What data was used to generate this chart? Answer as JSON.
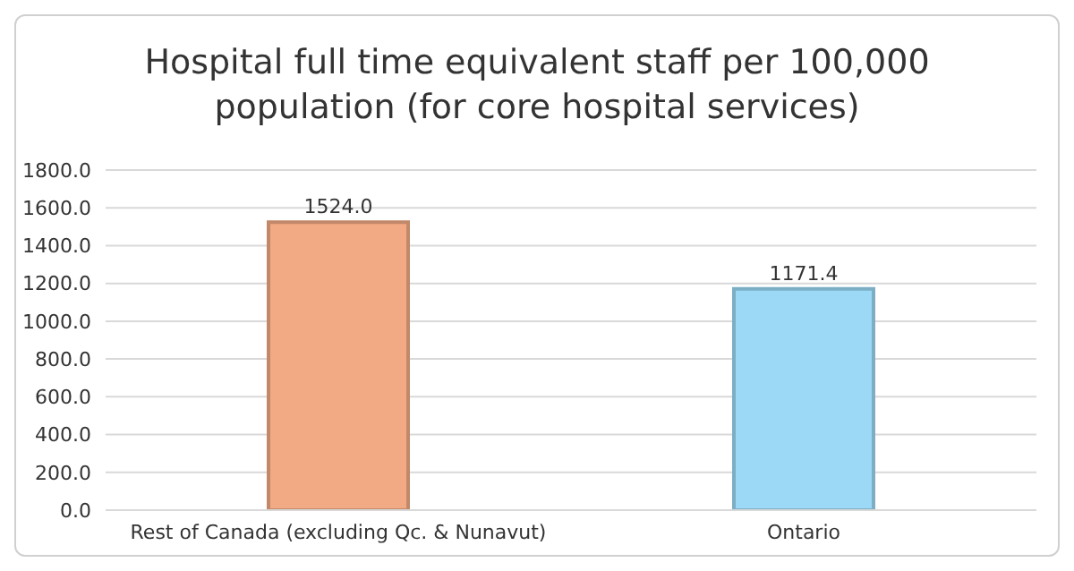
{
  "chart_data": {
    "type": "bar",
    "title": "Hospital full time equivalent staff per 100,000 population (for core hospital services)",
    "categories": [
      "Rest of Canada (excluding Qc. & Nunavut)",
      "Ontario"
    ],
    "values": [
      1524.0,
      1171.4
    ],
    "colors": [
      "#f2aa84",
      "#9bd9f7"
    ],
    "value_labels": [
      "1524.0",
      "1171.4"
    ],
    "ylim": [
      0,
      1800
    ],
    "yticks": [
      {
        "value": 0,
        "label": "0.0"
      },
      {
        "value": 200,
        "label": "200.0"
      },
      {
        "value": 400,
        "label": "400.0"
      },
      {
        "value": 600,
        "label": "600.0"
      },
      {
        "value": 800,
        "label": "800.0"
      },
      {
        "value": 1000,
        "label": "1000.0"
      },
      {
        "value": 1200,
        "label": "1200.0"
      },
      {
        "value": 1400,
        "label": "1400.0"
      },
      {
        "value": 1600,
        "label": "1600.0"
      },
      {
        "value": 1800,
        "label": "1800.0"
      }
    ],
    "grid": "y",
    "legend": false
  }
}
